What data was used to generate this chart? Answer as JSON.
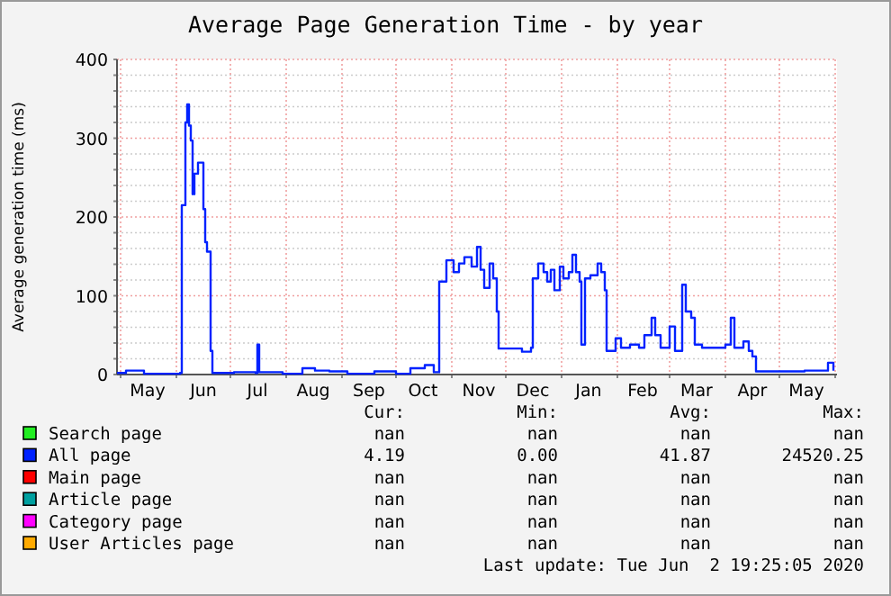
{
  "chart_data": {
    "type": "step",
    "title": "Average Page Generation Time - by year",
    "ylabel": "Average generation time (ms)",
    "xlim": [
      "2019-04-29",
      "2020-06-02"
    ],
    "xticks": [
      {
        "value": "2019-05-01",
        "label": null
      },
      {
        "value": "2019-05-16",
        "label": "May"
      },
      {
        "value": "2019-06-01",
        "label": null
      },
      {
        "value": "2019-06-16",
        "label": "Jun"
      },
      {
        "value": "2019-07-01",
        "label": null
      },
      {
        "value": "2019-07-16",
        "label": "Jul"
      },
      {
        "value": "2019-08-01",
        "label": null
      },
      {
        "value": "2019-08-16",
        "label": "Aug"
      },
      {
        "value": "2019-09-01",
        "label": null
      },
      {
        "value": "2019-09-16",
        "label": "Sep"
      },
      {
        "value": "2019-10-01",
        "label": null
      },
      {
        "value": "2019-10-16",
        "label": "Oct"
      },
      {
        "value": "2019-11-01",
        "label": null
      },
      {
        "value": "2019-11-16",
        "label": "Nov"
      },
      {
        "value": "2019-12-01",
        "label": null
      },
      {
        "value": "2019-12-16",
        "label": "Dec"
      },
      {
        "value": "2020-01-01",
        "label": null
      },
      {
        "value": "2020-01-16",
        "label": "Jan"
      },
      {
        "value": "2020-02-01",
        "label": null
      },
      {
        "value": "2020-02-15",
        "label": "Feb"
      },
      {
        "value": "2020-03-01",
        "label": null
      },
      {
        "value": "2020-03-16",
        "label": "Mar"
      },
      {
        "value": "2020-04-01",
        "label": null
      },
      {
        "value": "2020-04-16",
        "label": "Apr"
      },
      {
        "value": "2020-05-01",
        "label": null
      },
      {
        "value": "2020-05-16",
        "label": "May"
      },
      {
        "value": "2020-06-01",
        "label": null
      }
    ],
    "ylim": [
      0,
      400
    ],
    "yticks": [
      0,
      {
        "value": 20,
        "label": null
      },
      {
        "value": 40,
        "label": null
      },
      {
        "value": 60,
        "label": null
      },
      {
        "value": 80,
        "label": null
      },
      100,
      {
        "value": 120,
        "label": null
      },
      {
        "value": 140,
        "label": null
      },
      {
        "value": 160,
        "label": null
      },
      {
        "value": 180,
        "label": null
      },
      200,
      {
        "value": 220,
        "label": null
      },
      {
        "value": 240,
        "label": null
      },
      {
        "value": 260,
        "label": null
      },
      {
        "value": 280,
        "label": null
      },
      300,
      {
        "value": 320,
        "label": null
      },
      {
        "value": 340,
        "label": null
      },
      {
        "value": 360,
        "label": null
      },
      {
        "value": 380,
        "label": null
      },
      400
    ],
    "grid": true,
    "legend": "bottom",
    "series": [
      {
        "name": "Search page",
        "color": "#22ee22"
      },
      {
        "name": "All page",
        "color": "#0022ff",
        "x": [
          "2019-04-29",
          "2019-05-04",
          "2019-05-11",
          "2019-05-14",
          "2019-05-27",
          "2019-06-03",
          "2019-06-04",
          "2019-06-06",
          "2019-06-07",
          "2019-06-08",
          "2019-06-09",
          "2019-06-10",
          "2019-06-11",
          "2019-06-13",
          "2019-06-16",
          "2019-06-17",
          "2019-06-18",
          "2019-06-20",
          "2019-06-21",
          "2019-07-03",
          "2019-07-15",
          "2019-07-16",
          "2019-07-17",
          "2019-07-30",
          "2019-08-10",
          "2019-08-17",
          "2019-08-25",
          "2019-09-04",
          "2019-09-19",
          "2019-10-01",
          "2019-10-09",
          "2019-10-17",
          "2019-10-22",
          "2019-10-25",
          "2019-10-29",
          "2019-11-02",
          "2019-11-05",
          "2019-11-08",
          "2019-11-12",
          "2019-11-15",
          "2019-11-17",
          "2019-11-19",
          "2019-11-22",
          "2019-11-24",
          "2019-11-26",
          "2019-11-27",
          "2019-12-10",
          "2019-12-15",
          "2019-12-16",
          "2019-12-19",
          "2019-12-22",
          "2019-12-24",
          "2019-12-26",
          "2019-12-28",
          "2019-12-31",
          "2020-01-02",
          "2020-01-05",
          "2020-01-07",
          "2020-01-09",
          "2020-01-11",
          "2020-01-12",
          "2020-01-14",
          "2020-01-17",
          "2020-01-21",
          "2020-01-23",
          "2020-01-25",
          "2020-01-26",
          "2020-01-31",
          "2020-02-03",
          "2020-02-08",
          "2020-02-13",
          "2020-02-16",
          "2020-02-20",
          "2020-02-22",
          "2020-02-25",
          "2020-03-01",
          "2020-03-04",
          "2020-03-08",
          "2020-03-10",
          "2020-03-13",
          "2020-03-15",
          "2020-03-19",
          "2020-03-26",
          "2020-04-01",
          "2020-04-04",
          "2020-04-06",
          "2020-04-11",
          "2020-04-14",
          "2020-04-16",
          "2020-04-18",
          "2020-04-28",
          "2020-05-15",
          "2020-05-28",
          "2020-05-31"
        ],
        "values": [
          2,
          5,
          5,
          1,
          1,
          2,
          215,
          320,
          343,
          316,
          297,
          229,
          255,
          269,
          210,
          168,
          156,
          30,
          2,
          3,
          2,
          38,
          3,
          1,
          8,
          5,
          4,
          1,
          4,
          1,
          8,
          12,
          3,
          118,
          145,
          130,
          141,
          149,
          137,
          162,
          133,
          110,
          141,
          122,
          80,
          33,
          29,
          34,
          122,
          141,
          130,
          118,
          133,
          107,
          137,
          122,
          130,
          152,
          130,
          118,
          38,
          122,
          126,
          141,
          130,
          107,
          30,
          46,
          34,
          38,
          34,
          50,
          72,
          50,
          34,
          61,
          30,
          114,
          80,
          72,
          38,
          34,
          34,
          38,
          72,
          34,
          42,
          30,
          23,
          4,
          4,
          5,
          15,
          5
        ]
      },
      {
        "name": "Main page",
        "color": "#ff0000"
      },
      {
        "name": "Article page",
        "color": "#00a0a0"
      },
      {
        "name": "Category page",
        "color": "#ff00ff"
      },
      {
        "name": "User Articles page",
        "color": "#ffaa00"
      }
    ],
    "annotations": [
      "Cur:",
      "Min:",
      "Avg:",
      "Max:",
      "nan",
      "nan",
      "nan",
      "nan",
      "4.19",
      "0.00",
      "41.87",
      "24520.25",
      "nan",
      "nan",
      "nan",
      "nan",
      "nan",
      "nan",
      "nan",
      "nan",
      "nan",
      "nan",
      "nan",
      "nan",
      "nan",
      "nan",
      "nan",
      "nan",
      "Last update: Tue Jun  2 19:25:05 2020"
    ]
  }
}
